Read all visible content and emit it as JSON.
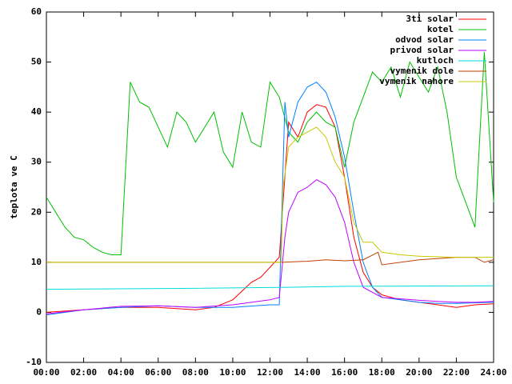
{
  "chart_data": {
    "type": "line",
    "ylabel": "teplota ve C",
    "xlim": [
      0,
      24
    ],
    "xticks": [
      {
        "value": 0,
        "label": "00:00"
      },
      {
        "value": 2,
        "label": "02:00"
      },
      {
        "value": 4,
        "label": "04:00"
      },
      {
        "value": 6,
        "label": "06:00"
      },
      {
        "value": 8,
        "label": "08:00"
      },
      {
        "value": 10,
        "label": "10:00"
      },
      {
        "value": 12,
        "label": "12:00"
      },
      {
        "value": 14,
        "label": "14:00"
      },
      {
        "value": 16,
        "label": "16:00"
      },
      {
        "value": 18,
        "label": "18:00"
      },
      {
        "value": 20,
        "label": "20:00"
      },
      {
        "value": 22,
        "label": "22:00"
      },
      {
        "value": 24,
        "label": "24:00"
      }
    ],
    "ylim": [
      -10,
      60
    ],
    "yticks": [
      -10,
      0,
      10,
      20,
      30,
      40,
      50,
      60
    ],
    "legend": "top-right",
    "series": [
      {
        "name": "3ti solar",
        "color": "#ff0000",
        "x": [
          0,
          2,
          4,
          6,
          8,
          9,
          10,
          11,
          11.5,
          12,
          12.5,
          13,
          13.5,
          14,
          14.5,
          15,
          15.5,
          16,
          16.5,
          17,
          17.5,
          18,
          19,
          20,
          21,
          22,
          23,
          24
        ],
        "values": [
          0,
          0.5,
          1,
          1,
          0.5,
          1,
          2.5,
          6,
          7,
          9,
          11,
          38,
          35,
          40,
          41.5,
          41,
          37,
          27,
          15,
          8,
          5,
          3.5,
          2.5,
          2,
          1.5,
          1,
          1.5,
          1.7
        ]
      },
      {
        "name": "kotel",
        "color": "#00c000",
        "x": [
          0,
          0.5,
          1,
          1.5,
          2,
          2.5,
          3,
          3.5,
          4,
          4.5,
          5,
          5.5,
          6,
          6.5,
          7,
          7.5,
          8,
          8.5,
          9,
          9.5,
          10,
          10.5,
          11,
          11.5,
          12,
          12.5,
          13,
          13.5,
          14,
          14.5,
          15,
          15.5,
          16,
          16.5,
          17,
          17.5,
          18,
          18.5,
          19,
          19.5,
          20,
          20.5,
          21,
          21.5,
          22,
          22.5,
          23,
          23.5,
          24
        ],
        "values": [
          23,
          20,
          17,
          15,
          14.5,
          13,
          12,
          11.5,
          11.5,
          46,
          42,
          41,
          37,
          33,
          40,
          38,
          34,
          37,
          40,
          32,
          29,
          40,
          34,
          33,
          46,
          43,
          36,
          34,
          38,
          40,
          38,
          37,
          29,
          38,
          43,
          48,
          46,
          49,
          43,
          50,
          47,
          44,
          49,
          40,
          27,
          22,
          17,
          52,
          22
        ]
      },
      {
        "name": "odvod solar",
        "color": "#0080ff",
        "x": [
          0,
          2,
          4,
          6,
          8,
          10,
          12,
          12.5,
          12.8,
          13,
          13.5,
          14,
          14.5,
          15,
          15.5,
          16,
          16.5,
          17,
          17.5,
          18,
          19,
          20,
          21,
          22,
          23,
          24
        ],
        "values": [
          -0.5,
          0.5,
          1,
          1.3,
          1,
          1,
          1.5,
          1.5,
          42,
          35,
          42,
          45,
          46,
          44,
          39,
          31,
          20,
          10,
          5,
          3,
          2.5,
          2,
          1.8,
          1.8,
          1.9,
          2
        ]
      },
      {
        "name": "privod solar",
        "color": "#c000ff",
        "x": [
          0,
          2,
          4,
          6,
          8,
          10,
          11,
          12,
          12.5,
          12.8,
          13,
          13.5,
          14,
          14.5,
          15,
          15.5,
          16,
          16.5,
          17,
          17.5,
          18,
          19,
          20,
          21,
          22,
          23,
          24
        ],
        "values": [
          -0.3,
          0.5,
          1.2,
          1.3,
          1,
          1.5,
          2,
          2.5,
          3,
          15,
          20,
          24,
          25,
          26.5,
          25.5,
          23,
          18,
          10,
          5,
          4,
          3,
          2.7,
          2.4,
          2.2,
          2,
          2,
          2.2
        ]
      },
      {
        "name": "kutloch",
        "color": "#00dddd",
        "x": [
          0,
          8,
          13,
          16,
          24
        ],
        "values": [
          4.6,
          4.8,
          5,
          5.2,
          5.3
        ]
      },
      {
        "name": "vymenik dole",
        "color": "#c04000",
        "x": [
          0,
          12.6,
          14,
          15,
          16,
          17,
          17.8,
          18,
          20,
          22,
          23,
          23.5,
          24
        ],
        "values": [
          10,
          10,
          10.2,
          10.5,
          10.3,
          10.5,
          12,
          9.5,
          10.5,
          11,
          11,
          10,
          10.5
        ]
      },
      {
        "name": "vymenik nahore",
        "color": "#c8c800",
        "x": [
          0,
          12.6,
          12.7,
          13,
          13.5,
          14,
          14.5,
          15,
          15.5,
          16,
          16.5,
          17,
          17.5,
          18,
          19,
          20,
          22,
          24
        ],
        "values": [
          10,
          10,
          25,
          33,
          35,
          36,
          37,
          35,
          30,
          27,
          18,
          14,
          14,
          12,
          11.5,
          11.2,
          11,
          11
        ]
      }
    ]
  }
}
